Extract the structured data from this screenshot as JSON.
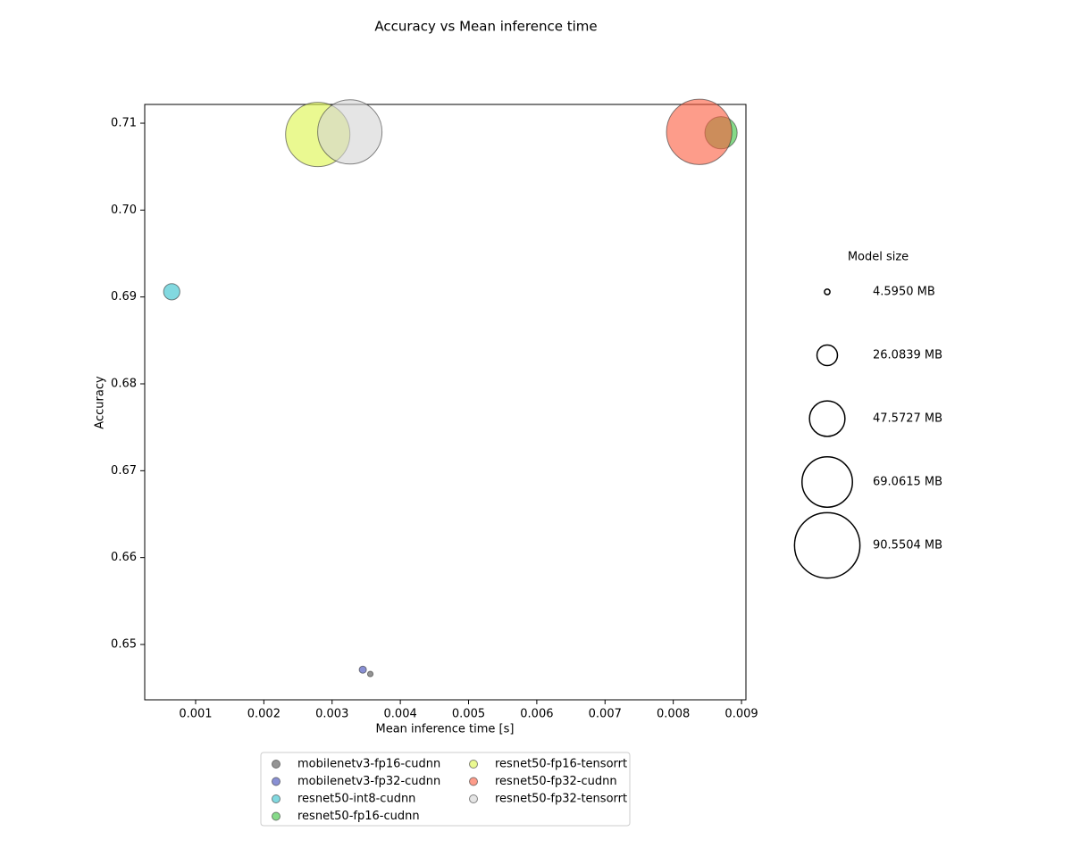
{
  "chart_data": {
    "type": "scatter",
    "title": "Accuracy vs Mean inference time",
    "xlabel": "Mean inference time [s]",
    "ylabel": "Accuracy",
    "xlim": [
      0.000254,
      0.009065
    ],
    "ylim": [
      0.64363,
      0.71216
    ],
    "xticks": [
      0.001,
      0.002,
      0.003,
      0.004,
      0.005,
      0.006,
      0.007,
      0.008,
      0.009
    ],
    "yticks": [
      0.65,
      0.66,
      0.67,
      0.68,
      0.69,
      {
        "value": 0.7,
        "label": "0.70"
      },
      0.71
    ],
    "grid": false,
    "legend": "lower center",
    "series": [
      {
        "name": "mobilenetv3-fp16-cudnn",
        "color": "#4d4d4d",
        "x": [
          0.00356
        ],
        "values": [
          0.6466
        ],
        "sizes": [
          4.595
        ]
      },
      {
        "name": "mobilenetv3-fp32-cudnn",
        "color": "#3a46b8",
        "x": [
          0.00345
        ],
        "values": [
          0.6471
        ],
        "sizes": [
          7
        ]
      },
      {
        "name": "resnet50-int8-cudnn",
        "color": "#2fbfcc",
        "x": [
          0.00065
        ],
        "values": [
          0.6906
        ],
        "sizes": [
          20
        ]
      },
      {
        "name": "resnet50-fp16-cudnn",
        "color": "#36c23a",
        "x": [
          0.0087
        ],
        "values": [
          0.7089
        ],
        "sizes": [
          43
        ]
      },
      {
        "name": "resnet50-fp16-tensorrt",
        "color": "#dcf548",
        "x": [
          0.00279
        ],
        "values": [
          0.7087
        ],
        "sizes": [
          89
        ]
      },
      {
        "name": "resnet50-fp32-cudnn",
        "color": "#fb5a3c",
        "x": [
          0.00838
        ],
        "values": [
          0.709
        ],
        "sizes": [
          90.5504
        ]
      },
      {
        "name": "resnet50-fp32-tensorrt",
        "color": "#d4d4d4",
        "x": [
          0.00326
        ],
        "values": [
          0.709
        ],
        "sizes": [
          89
        ]
      }
    ],
    "size_legend": {
      "title": "Model size",
      "ticks": [
        {
          "value": 4.595,
          "label": "4.5950 MB"
        },
        {
          "value": 26.0839,
          "label": "26.0839 MB"
        },
        {
          "value": 47.5727,
          "label": "47.5727 MB"
        },
        {
          "value": 69.0615,
          "label": "69.0615 MB"
        },
        {
          "value": 90.5504,
          "label": "90.5504 MB"
        }
      ]
    }
  }
}
